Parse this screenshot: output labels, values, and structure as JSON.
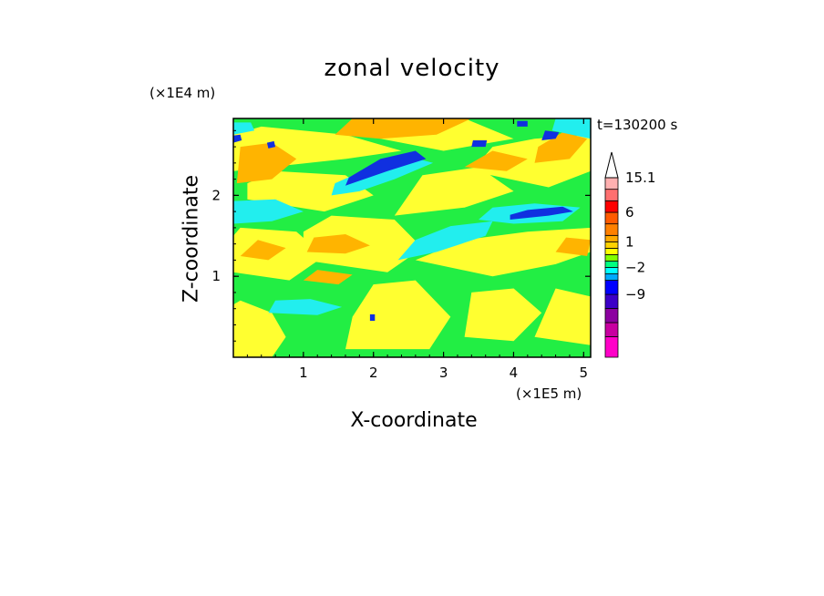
{
  "chart_data": {
    "type": "heatmap",
    "title": "zonal velocity",
    "xlabel": "X-coordinate",
    "ylabel": "Z-coordinate",
    "x_unit": "(×1E5 m)",
    "z_unit": "(×1E4 m)",
    "time_label": "t=130200 s",
    "xlim": [
      0,
      5.1
    ],
    "ylim": [
      0,
      2.95
    ],
    "x_ticks": [
      "1",
      "2",
      "3",
      "4",
      "5"
    ],
    "y_ticks": [
      "1",
      "2"
    ],
    "colorbar": {
      "labels": [
        "15.1",
        "6",
        "1",
        "−2",
        "−9"
      ],
      "levels": [
        {
          "color": "#ff00c8",
          "weight": 1.6
        },
        {
          "color": "#c800a0",
          "weight": 1.1
        },
        {
          "color": "#8c00a0",
          "weight": 1.1
        },
        {
          "color": "#3c00c8",
          "weight": 1.1
        },
        {
          "color": "#0000ff",
          "weight": 1.1
        },
        {
          "color": "#00aaff",
          "weight": 0.5
        },
        {
          "color": "#00ffff",
          "weight": 0.5
        },
        {
          "color": "#00ff80",
          "weight": 0.5
        },
        {
          "color": "#80ff00",
          "weight": 0.5
        },
        {
          "color": "#ffff00",
          "weight": 0.5
        },
        {
          "color": "#ffd200",
          "weight": 0.5
        },
        {
          "color": "#ffaa00",
          "weight": 0.5
        },
        {
          "color": "#ff8000",
          "weight": 0.9
        },
        {
          "color": "#ff5a00",
          "weight": 0.9
        },
        {
          "color": "#ff0000",
          "weight": 0.9
        },
        {
          "color": "#ff7070",
          "weight": 0.9
        },
        {
          "color": "#ffb0b0",
          "weight": 0.9
        }
      ],
      "over_arrow_color": "#ffffff"
    },
    "background_color": "#22ee44",
    "regions": [
      {
        "color": "#ffff30",
        "points": [
          [
            0.0,
            0.0
          ],
          [
            0.55,
            0.0
          ],
          [
            0.75,
            0.25
          ],
          [
            0.55,
            0.55
          ],
          [
            0.1,
            0.7
          ],
          [
            0.0,
            0.65
          ]
        ]
      },
      {
        "color": "#ffff30",
        "points": [
          [
            1.6,
            0.1
          ],
          [
            2.8,
            0.1
          ],
          [
            3.1,
            0.5
          ],
          [
            2.6,
            0.95
          ],
          [
            2.0,
            0.9
          ],
          [
            1.7,
            0.5
          ]
        ]
      },
      {
        "color": "#ffff30",
        "points": [
          [
            3.3,
            0.25
          ],
          [
            4.0,
            0.2
          ],
          [
            4.4,
            0.55
          ],
          [
            4.0,
            0.85
          ],
          [
            3.4,
            0.8
          ]
        ]
      },
      {
        "color": "#ffff30",
        "points": [
          [
            4.3,
            0.25
          ],
          [
            5.1,
            0.15
          ],
          [
            5.1,
            0.75
          ],
          [
            4.6,
            0.85
          ]
        ]
      },
      {
        "color": "#ffff30",
        "points": [
          [
            0.0,
            1.05
          ],
          [
            0.8,
            0.95
          ],
          [
            1.3,
            1.25
          ],
          [
            0.9,
            1.55
          ],
          [
            0.1,
            1.6
          ],
          [
            0.0,
            1.5
          ]
        ]
      },
      {
        "color": "#ffff30",
        "points": [
          [
            1.0,
            1.2
          ],
          [
            2.2,
            1.05
          ],
          [
            2.7,
            1.35
          ],
          [
            2.3,
            1.7
          ],
          [
            1.4,
            1.75
          ],
          [
            1.0,
            1.55
          ]
        ]
      },
      {
        "color": "#ffff30",
        "points": [
          [
            2.6,
            1.2
          ],
          [
            3.7,
            1.0
          ],
          [
            4.6,
            1.15
          ],
          [
            5.1,
            1.3
          ],
          [
            5.1,
            1.6
          ],
          [
            4.2,
            1.55
          ],
          [
            3.3,
            1.45
          ]
        ]
      },
      {
        "color": "#ffff30",
        "points": [
          [
            0.2,
            1.95
          ],
          [
            1.3,
            1.8
          ],
          [
            2.0,
            2.0
          ],
          [
            1.6,
            2.25
          ],
          [
            0.6,
            2.3
          ],
          [
            0.2,
            2.15
          ]
        ]
      },
      {
        "color": "#ffff30",
        "points": [
          [
            2.3,
            1.75
          ],
          [
            3.3,
            1.85
          ],
          [
            4.0,
            2.05
          ],
          [
            3.5,
            2.35
          ],
          [
            2.7,
            2.25
          ]
        ]
      },
      {
        "color": "#ffff30",
        "points": [
          [
            3.4,
            2.3
          ],
          [
            4.5,
            2.1
          ],
          [
            5.1,
            2.3
          ],
          [
            5.1,
            2.75
          ],
          [
            4.3,
            2.7
          ],
          [
            3.7,
            2.6
          ]
        ]
      },
      {
        "color": "#ffff30",
        "points": [
          [
            0.0,
            2.3
          ],
          [
            1.6,
            2.45
          ],
          [
            2.4,
            2.55
          ],
          [
            1.6,
            2.75
          ],
          [
            0.4,
            2.85
          ],
          [
            0.0,
            2.75
          ]
        ]
      },
      {
        "color": "#ffff30",
        "points": [
          [
            1.8,
            2.75
          ],
          [
            3.0,
            2.55
          ],
          [
            4.0,
            2.7
          ],
          [
            3.3,
            2.95
          ],
          [
            2.0,
            2.95
          ]
        ]
      },
      {
        "color": "#ffb400",
        "points": [
          [
            0.05,
            2.15
          ],
          [
            0.55,
            2.2
          ],
          [
            0.9,
            2.45
          ],
          [
            0.55,
            2.65
          ],
          [
            0.1,
            2.6
          ]
        ]
      },
      {
        "color": "#ffb400",
        "points": [
          [
            1.45,
            2.75
          ],
          [
            2.1,
            2.7
          ],
          [
            2.9,
            2.75
          ],
          [
            3.4,
            2.95
          ],
          [
            1.7,
            2.95
          ]
        ]
      },
      {
        "color": "#ffb400",
        "points": [
          [
            4.3,
            2.4
          ],
          [
            4.8,
            2.45
          ],
          [
            5.05,
            2.7
          ],
          [
            4.7,
            2.78
          ],
          [
            4.35,
            2.6
          ]
        ]
      },
      {
        "color": "#ffb400",
        "points": [
          [
            1.05,
            1.3
          ],
          [
            1.6,
            1.28
          ],
          [
            1.95,
            1.38
          ],
          [
            1.6,
            1.52
          ],
          [
            1.15,
            1.48
          ]
        ]
      },
      {
        "color": "#ffb400",
        "points": [
          [
            0.1,
            1.25
          ],
          [
            0.5,
            1.2
          ],
          [
            0.75,
            1.35
          ],
          [
            0.35,
            1.45
          ]
        ]
      },
      {
        "color": "#ffb400",
        "points": [
          [
            3.3,
            2.35
          ],
          [
            3.9,
            2.3
          ],
          [
            4.2,
            2.45
          ],
          [
            3.7,
            2.55
          ]
        ]
      },
      {
        "color": "#ffb400",
        "points": [
          [
            1.0,
            0.95
          ],
          [
            1.5,
            0.9
          ],
          [
            1.7,
            1.02
          ],
          [
            1.2,
            1.08
          ]
        ]
      },
      {
        "color": "#ffb400",
        "points": [
          [
            4.6,
            1.3
          ],
          [
            5.05,
            1.25
          ],
          [
            5.1,
            1.45
          ],
          [
            4.75,
            1.48
          ]
        ]
      },
      {
        "color": "#22eeee",
        "points": [
          [
            0.0,
            1.65
          ],
          [
            0.55,
            1.68
          ],
          [
            1.0,
            1.8
          ],
          [
            0.6,
            1.95
          ],
          [
            0.0,
            1.93
          ]
        ]
      },
      {
        "color": "#22eeee",
        "points": [
          [
            2.35,
            1.2
          ],
          [
            2.9,
            1.3
          ],
          [
            3.6,
            1.5
          ],
          [
            3.7,
            1.68
          ],
          [
            3.1,
            1.62
          ],
          [
            2.6,
            1.45
          ]
        ]
      },
      {
        "color": "#22eeee",
        "points": [
          [
            1.4,
            2.0
          ],
          [
            1.8,
            2.05
          ],
          [
            2.3,
            2.2
          ],
          [
            2.85,
            2.4
          ],
          [
            2.5,
            2.48
          ],
          [
            1.9,
            2.32
          ],
          [
            1.45,
            2.15
          ]
        ]
      },
      {
        "color": "#22eeee",
        "points": [
          [
            3.5,
            1.7
          ],
          [
            4.0,
            1.65
          ],
          [
            4.7,
            1.68
          ],
          [
            4.95,
            1.85
          ],
          [
            4.3,
            1.9
          ],
          [
            3.7,
            1.85
          ]
        ]
      },
      {
        "color": "#22eeee",
        "points": [
          [
            0.5,
            0.55
          ],
          [
            1.2,
            0.52
          ],
          [
            1.55,
            0.62
          ],
          [
            1.1,
            0.72
          ],
          [
            0.6,
            0.7
          ]
        ]
      },
      {
        "color": "#22eeee",
        "points": [
          [
            4.55,
            2.8
          ],
          [
            5.1,
            2.7
          ],
          [
            5.1,
            2.95
          ],
          [
            4.6,
            2.95
          ]
        ]
      },
      {
        "color": "#22eeee",
        "points": [
          [
            0.0,
            2.75
          ],
          [
            0.3,
            2.8
          ],
          [
            0.25,
            2.9
          ],
          [
            0.0,
            2.9
          ]
        ]
      },
      {
        "color": "#1030e0",
        "points": [
          [
            1.6,
            2.12
          ],
          [
            2.2,
            2.3
          ],
          [
            2.75,
            2.45
          ],
          [
            2.6,
            2.55
          ],
          [
            2.1,
            2.45
          ],
          [
            1.65,
            2.22
          ]
        ]
      },
      {
        "color": "#1030e0",
        "points": [
          [
            3.95,
            1.7
          ],
          [
            4.5,
            1.75
          ],
          [
            4.85,
            1.8
          ],
          [
            4.7,
            1.86
          ],
          [
            4.2,
            1.82
          ],
          [
            3.95,
            1.76
          ]
        ]
      },
      {
        "color": "#1030e0",
        "points": [
          [
            4.4,
            2.68
          ],
          [
            4.6,
            2.7
          ],
          [
            4.65,
            2.78
          ],
          [
            4.45,
            2.8
          ]
        ]
      },
      {
        "color": "#1030e0",
        "points": [
          [
            3.4,
            2.6
          ],
          [
            3.6,
            2.6
          ],
          [
            3.62,
            2.68
          ],
          [
            3.42,
            2.68
          ]
        ]
      },
      {
        "color": "#1030e0",
        "points": [
          [
            1.95,
            0.45
          ],
          [
            2.02,
            0.45
          ],
          [
            2.02,
            0.53
          ],
          [
            1.95,
            0.53
          ]
        ]
      },
      {
        "color": "#1030e0",
        "points": [
          [
            0.0,
            2.65
          ],
          [
            0.12,
            2.68
          ],
          [
            0.1,
            2.75
          ],
          [
            0.0,
            2.74
          ]
        ]
      },
      {
        "color": "#1030e0",
        "points": [
          [
            4.05,
            2.85
          ],
          [
            4.2,
            2.85
          ],
          [
            4.2,
            2.92
          ],
          [
            4.05,
            2.92
          ]
        ]
      },
      {
        "color": "#1030e0",
        "points": [
          [
            0.5,
            2.58
          ],
          [
            0.6,
            2.6
          ],
          [
            0.58,
            2.67
          ],
          [
            0.48,
            2.65
          ]
        ]
      }
    ]
  }
}
